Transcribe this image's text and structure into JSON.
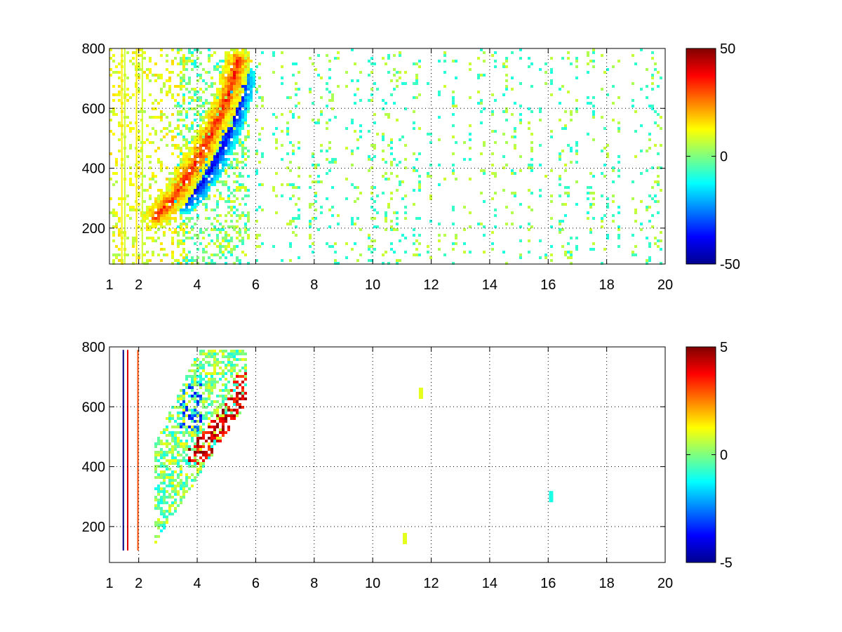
{
  "chart_data": [
    {
      "type": "heatmap",
      "title": "",
      "xlabel": "",
      "ylabel": "",
      "xlim": [
        1,
        20
      ],
      "ylim": [
        80,
        800
      ],
      "grid": true,
      "colormap": "jet",
      "x_ticks": [
        1,
        2,
        4,
        6,
        8,
        10,
        12,
        14,
        16,
        18,
        20
      ],
      "x_tick_labels": [
        "1",
        "2",
        "4",
        "6",
        "8",
        "10",
        "12",
        "14",
        "16",
        "18",
        "20"
      ],
      "y_ticks": [
        200,
        400,
        600,
        800
      ],
      "y_tick_labels": [
        "200",
        "400",
        "600",
        "800"
      ],
      "colorbar": {
        "range": [
          -50,
          50
        ],
        "ticks": [
          50,
          0,
          -50
        ],
        "tick_labels": [
          "50",
          "0",
          "-50"
        ]
      },
      "features": [
        {
          "feature": "positive-ridge",
          "value": 35,
          "path": [
            [
              2.6,
              240
            ],
            [
              3.2,
              300
            ],
            [
              3.7,
              380
            ],
            [
              4.2,
              460
            ],
            [
              4.7,
              560
            ],
            [
              5.1,
              650
            ],
            [
              5.4,
              760
            ]
          ]
        },
        {
          "feature": "negative-ridge",
          "value": -40,
          "path": [
            [
              3.6,
              290
            ],
            [
              4.1,
              340
            ],
            [
              4.6,
              420
            ],
            [
              5.0,
              500
            ],
            [
              5.4,
              600
            ],
            [
              5.6,
              700
            ]
          ]
        },
        {
          "feature": "low-frequency-band",
          "value": 10,
          "x_range": [
            1.2,
            3.6
          ],
          "y_range": [
            80,
            800
          ]
        }
      ]
    },
    {
      "type": "heatmap",
      "title": "",
      "xlabel": "",
      "ylabel": "",
      "xlim": [
        1,
        20
      ],
      "ylim": [
        80,
        800
      ],
      "grid": true,
      "colormap": "jet",
      "x_ticks": [
        1,
        2,
        4,
        6,
        8,
        10,
        12,
        14,
        16,
        18,
        20
      ],
      "x_tick_labels": [
        "1",
        "2",
        "4",
        "6",
        "8",
        "10",
        "12",
        "14",
        "16",
        "18",
        "20"
      ],
      "y_ticks": [
        200,
        400,
        600,
        800
      ],
      "y_tick_labels": [
        "200",
        "400",
        "600",
        "800"
      ],
      "colorbar": {
        "range": [
          -5,
          5
        ],
        "ticks": [
          5,
          0,
          -5
        ],
        "tick_labels": [
          "5",
          "0",
          "-5"
        ]
      },
      "features": [
        {
          "feature": "main-blob",
          "value": 0,
          "x_range": [
            2.5,
            5.7
          ],
          "y_range": [
            100,
            790
          ]
        },
        {
          "feature": "positive-edge",
          "value": 4,
          "path": [
            [
              4.0,
              440
            ],
            [
              4.5,
              500
            ],
            [
              5.0,
              560
            ],
            [
              5.4,
              620
            ],
            [
              5.6,
              680
            ]
          ]
        },
        {
          "feature": "negative-cluster",
          "value": -3,
          "x_range": [
            3.4,
            4.2
          ],
          "y_range": [
            520,
            680
          ]
        },
        {
          "feature": "isolated-points",
          "points": [
            [
              11.1,
              160,
              1
            ],
            [
              11.65,
              645,
              1
            ],
            [
              16.1,
              300,
              -1
            ]
          ]
        }
      ]
    }
  ]
}
